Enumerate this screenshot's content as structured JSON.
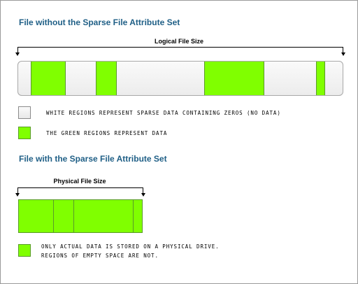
{
  "top": {
    "title": "File without the Sparse File Attribute Set",
    "dimension_label": "Logical File Size",
    "legend_white": "WHITE REGIONS REPRESENT SPARSE DATA CONTAINING ZEROS (NO DATA)",
    "legend_green": "THE GREEN REGIONS REPRESENT DATA"
  },
  "bottom": {
    "title": "File with the Sparse File Attribute Set",
    "dimension_label": "Physical File Size",
    "legend_line1": "ONLY ACTUAL DATA IS STORED ON A PHYSICAL DRIVE.",
    "legend_line2": "REGIONS OF EMPTY SPACE ARE NOT."
  },
  "colors": {
    "data": "#80ff00",
    "sparse": "#f0f0f0",
    "title": "#1f5f86"
  }
}
